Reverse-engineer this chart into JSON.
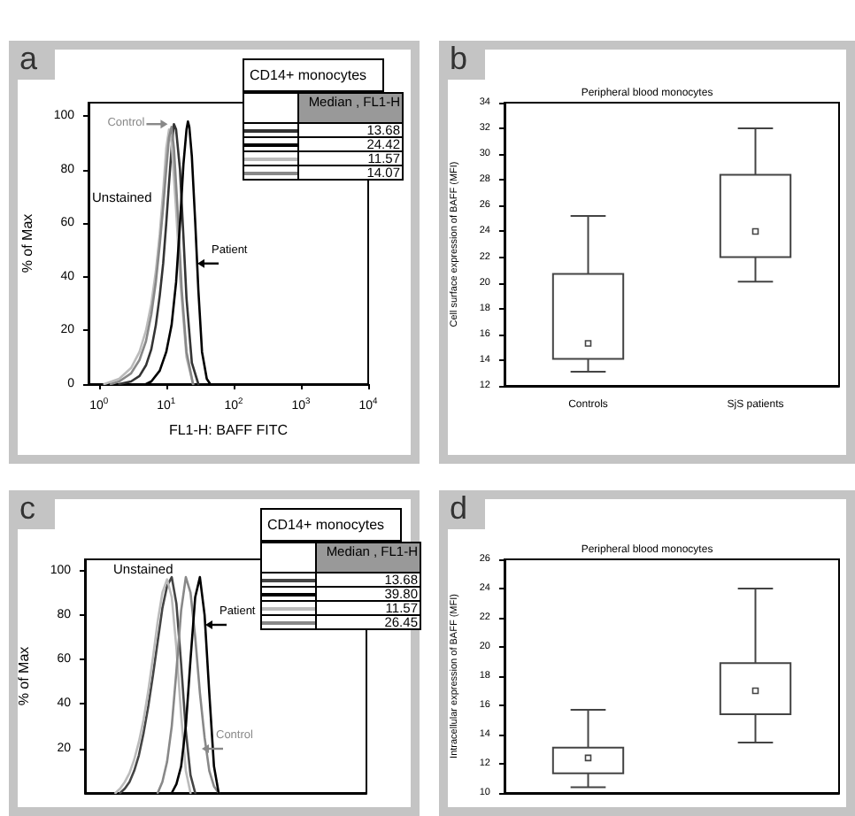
{
  "chart_data": [
    {
      "type": "line",
      "annotations": [
        "a",
        "Median , FL1-H",
        {
          "text": "Control",
          "x": 10.5,
          "y": 97
        },
        "Unstained",
        {
          "text": "Patient",
          "x": 29,
          "y": 45
        }
      ],
      "legend_title": "CD14+ monocytes",
      "legend": "top right",
      "xlabel": "FL1-H: BAFF FITC",
      "ylabel": "% of Max",
      "log": "x",
      "xlim": [
        0.7,
        10000
      ],
      "xticks": [
        {
          "value": 1,
          "label": "10$^{0}$"
        },
        {
          "value": 10,
          "label": "10$^{1}$"
        },
        {
          "value": 100,
          "label": "10$^{2}$"
        },
        {
          "value": 1000,
          "label": "10$^{3}$"
        },
        {
          "value": 10000,
          "label": "10$^{4}$"
        }
      ],
      "ylim": [
        0,
        105
      ],
      "yticks": [
        0,
        20,
        40,
        60,
        80,
        100
      ],
      "marker": "none",
      "line_style": "solid",
      "grid": false,
      "series": [
        {
          "name": "13.68",
          "color": "#333333",
          "x": [
            2,
            3,
            4,
            5,
            6,
            7,
            8,
            9,
            10,
            11,
            12,
            13,
            14,
            16,
            18,
            20,
            24,
            30
          ],
          "values": [
            0,
            1,
            3,
            7,
            13,
            22,
            33,
            45,
            60,
            75,
            88,
            97,
            95,
            80,
            55,
            32,
            8,
            0
          ]
        },
        {
          "name": "24.42",
          "color": "#000000",
          "x": [
            5,
            6,
            8,
            10,
            12,
            14,
            16,
            18,
            20,
            21,
            22,
            24,
            27,
            30,
            34,
            40,
            45
          ],
          "values": [
            0,
            1,
            5,
            12,
            22,
            38,
            60,
            82,
            95,
            98,
            96,
            85,
            60,
            35,
            12,
            2,
            0
          ]
        },
        {
          "name": "11.57",
          "color": "#bbbbbb",
          "x": [
            1.2,
            2,
            3,
            4,
            5,
            6,
            7,
            8,
            9,
            10,
            11,
            12,
            14,
            16,
            20,
            25
          ],
          "values": [
            0,
            2,
            6,
            12,
            20,
            30,
            42,
            56,
            72,
            88,
            95,
            90,
            65,
            40,
            10,
            0
          ]
        },
        {
          "name": "14.07",
          "color": "#888888",
          "x": [
            1.5,
            2,
            3,
            4,
            5,
            6,
            7,
            8,
            9,
            10,
            11,
            12,
            13,
            15,
            17,
            20,
            25
          ],
          "values": [
            0,
            1,
            4,
            9,
            16,
            26,
            38,
            52,
            66,
            80,
            92,
            96,
            88,
            62,
            35,
            12,
            0
          ]
        }
      ]
    },
    {
      "type": "box",
      "title": "Peripheral blood monocytes",
      "ylabel": "Cell surface expression of BAFF (MFI)",
      "categories": [
        "Controls",
        "SjS patients"
      ],
      "ylim": [
        12,
        34
      ],
      "yticks": [
        12,
        14,
        16,
        18,
        20,
        22,
        24,
        26,
        28,
        30,
        32,
        34
      ],
      "grid": false,
      "annotations": [
        "b"
      ],
      "boxes": [
        {
          "low": 13.1,
          "q1": 14.1,
          "median": 15.3,
          "q3": 20.7,
          "high": 25.2
        },
        {
          "low": 20.1,
          "q1": 22.0,
          "median": 24.0,
          "q3": 28.4,
          "high": 32.0
        }
      ]
    },
    {
      "type": "line",
      "annotations": [
        "c",
        "Median , FL1-H",
        "Unstained",
        "Patient",
        "Control"
      ],
      "legend_title": "CD14+ monocytes",
      "legend": "top right",
      "ylabel": "% of Max",
      "tick_labels": "y",
      "ylim": [
        0,
        105
      ],
      "yticks": [
        20,
        40,
        60,
        80,
        100
      ],
      "marker": "none",
      "line_style": "solid",
      "grid": false,
      "categories": [
        null,
        null,
        null,
        null,
        null,
        null,
        null,
        null,
        null,
        null,
        null,
        null,
        null,
        null,
        null,
        null,
        null,
        null,
        null,
        null,
        null,
        null,
        null,
        null,
        null,
        null,
        null,
        null,
        null,
        null,
        null,
        null,
        null,
        null,
        null,
        null,
        null,
        null,
        null,
        null,
        null,
        null,
        null,
        null,
        null,
        null,
        null,
        null,
        null,
        null,
        null,
        null,
        null,
        null,
        null,
        null,
        null,
        null,
        null,
        null
      ],
      "series": [
        {
          "name": "13.68",
          "color": "#444444",
          "values": [
            null,
            null,
            null,
            null,
            null,
            null,
            null,
            0,
            2,
            5,
            10,
            17,
            27,
            39,
            53,
            68,
            83,
            93,
            97,
            85,
            58,
            28,
            8,
            0,
            null,
            null,
            null,
            null,
            null,
            null,
            null,
            null,
            null,
            null,
            null,
            null,
            null,
            null,
            null,
            null,
            null,
            null,
            null,
            null,
            null,
            null,
            null,
            null,
            null,
            null,
            null,
            null,
            null,
            null,
            null,
            null,
            null,
            null,
            null,
            null
          ]
        },
        {
          "name": "39.80",
          "color": "#000000",
          "values": [
            null,
            null,
            null,
            null,
            null,
            null,
            null,
            null,
            null,
            null,
            null,
            null,
            null,
            null,
            null,
            null,
            null,
            null,
            0,
            4,
            12,
            30,
            60,
            88,
            97,
            80,
            45,
            12,
            0,
            null,
            null,
            null,
            null,
            null,
            null,
            null,
            null,
            null,
            null,
            null,
            null,
            null,
            null,
            null,
            null,
            null,
            null,
            null,
            null,
            null,
            null,
            null,
            null,
            null,
            null,
            null,
            null,
            null,
            null,
            null
          ]
        },
        {
          "name": "11.57",
          "color": "#bbbbbb",
          "values": [
            null,
            null,
            null,
            null,
            null,
            null,
            0,
            2,
            5,
            9,
            15,
            23,
            33,
            46,
            61,
            77,
            90,
            96,
            88,
            65,
            35,
            10,
            0,
            null,
            null,
            null,
            null,
            null,
            null,
            null,
            null,
            null,
            null,
            null,
            null,
            null,
            null,
            null,
            null,
            null,
            null,
            null,
            null,
            null,
            null,
            null,
            null,
            null,
            null,
            null,
            null,
            null,
            null,
            null,
            null,
            null,
            null,
            null,
            null,
            null
          ]
        },
        {
          "name": "26.45",
          "color": "#888888",
          "values": [
            null,
            null,
            null,
            null,
            null,
            null,
            null,
            null,
            null,
            null,
            null,
            null,
            null,
            null,
            null,
            0,
            5,
            14,
            30,
            55,
            82,
            97,
            90,
            70,
            45,
            25,
            10,
            3,
            0,
            null,
            null,
            null,
            null,
            null,
            null,
            null,
            null,
            null,
            null,
            null,
            null,
            null,
            null,
            null,
            null,
            null,
            null,
            null,
            null,
            null,
            null,
            null,
            null,
            null,
            null,
            null,
            null,
            null,
            null,
            null
          ]
        }
      ]
    },
    {
      "type": "box",
      "title": "Peripheral blood monocytes",
      "ylabel": "Intracellular expression of BAFF (MFI)",
      "categories": [
        null,
        null
      ],
      "tick_labels": "y",
      "ylim": [
        10,
        26
      ],
      "yticks": [
        10,
        12,
        14,
        16,
        18,
        20,
        22,
        24,
        26
      ],
      "grid": false,
      "annotations": [
        "d"
      ],
      "boxes": [
        {
          "low": 10.4,
          "q1": 11.35,
          "median": 12.4,
          "q3": 13.1,
          "high": 15.7
        },
        {
          "low": 13.45,
          "q1": 15.4,
          "median": 17.0,
          "q3": 18.9,
          "high": 24.0
        }
      ]
    }
  ]
}
